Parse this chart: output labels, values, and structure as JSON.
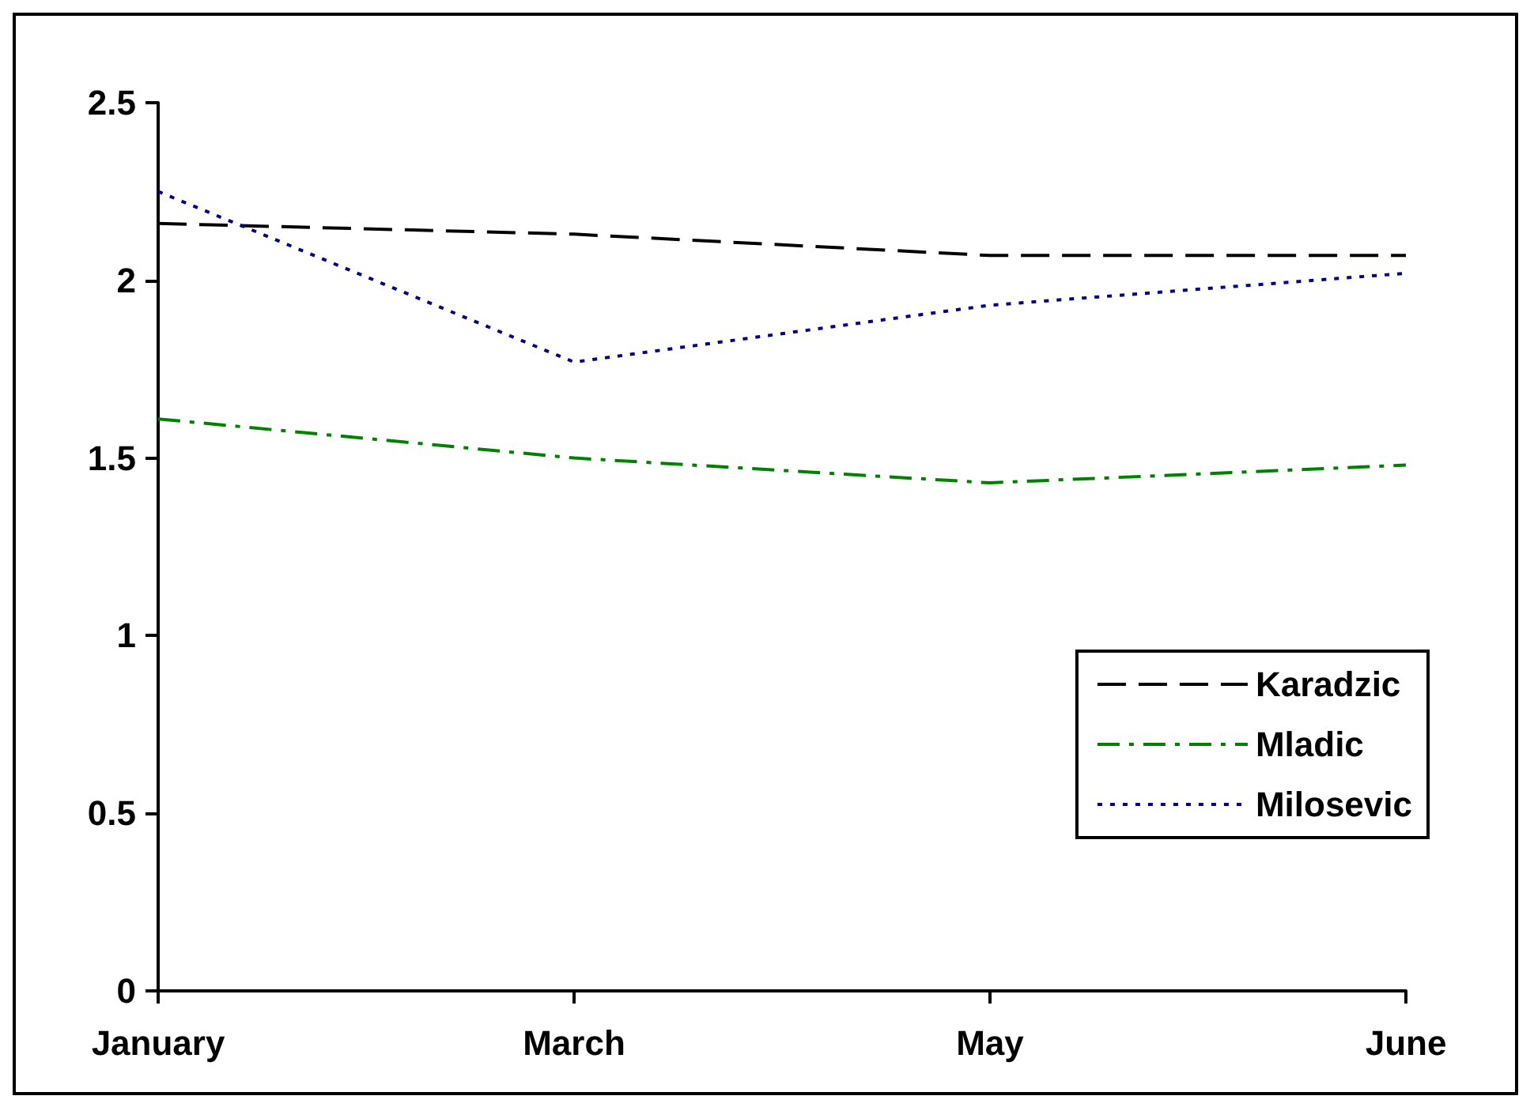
{
  "chart_data": {
    "type": "line",
    "categories": [
      "January",
      "March",
      "May",
      "June"
    ],
    "series": [
      {
        "name": "Karadzic",
        "color": "#000000",
        "line_style": "dashed",
        "values": [
          2.16,
          2.13,
          2.07,
          2.07
        ]
      },
      {
        "name": "Mladic",
        "color": "#008000",
        "line_style": "dashdot",
        "values": [
          1.61,
          1.5,
          1.43,
          1.48
        ]
      },
      {
        "name": "Milosevic",
        "color": "#000080",
        "line_style": "dotted",
        "values": [
          2.25,
          1.77,
          1.93,
          2.02
        ]
      }
    ],
    "ylim": [
      0,
      2.5
    ],
    "yticks": [
      0,
      0.5,
      1,
      1.5,
      2,
      2.5
    ],
    "grid": false,
    "legend": "right",
    "marker": "none"
  }
}
